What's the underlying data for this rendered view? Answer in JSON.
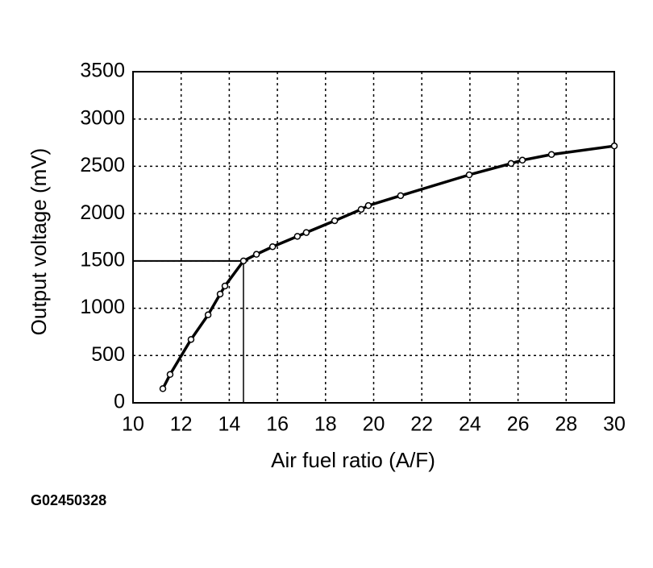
{
  "chart_data": {
    "type": "line",
    "x_label": "Air fuel ratio (A/F)",
    "y_label": "Output voltage (mV)",
    "caption": "G02450328",
    "x": [
      11.24,
      11.54,
      12.41,
      13.12,
      13.62,
      13.82,
      14.59,
      15.13,
      15.8,
      16.83,
      17.2,
      18.38,
      19.48,
      19.78,
      21.12,
      23.97,
      25.71,
      26.18,
      27.39,
      30
    ],
    "values": [
      150,
      300,
      670,
      930,
      1150,
      1235,
      1500,
      1570,
      1650,
      1760,
      1800,
      1925,
      2045,
      2085,
      2190,
      2410,
      2530,
      2565,
      2625,
      2715
    ],
    "color": "#000000",
    "markers": true,
    "reference": {
      "x": 14.59,
      "y": 1500
    },
    "xlim": [
      10,
      30
    ],
    "xticks": [
      10,
      12,
      14,
      16,
      18,
      20,
      22,
      24,
      26,
      28,
      30
    ],
    "ylim": [
      0,
      3500
    ],
    "yticks": [
      0,
      500,
      1000,
      1500,
      2000,
      2500,
      3000,
      3500
    ],
    "grid": true
  }
}
